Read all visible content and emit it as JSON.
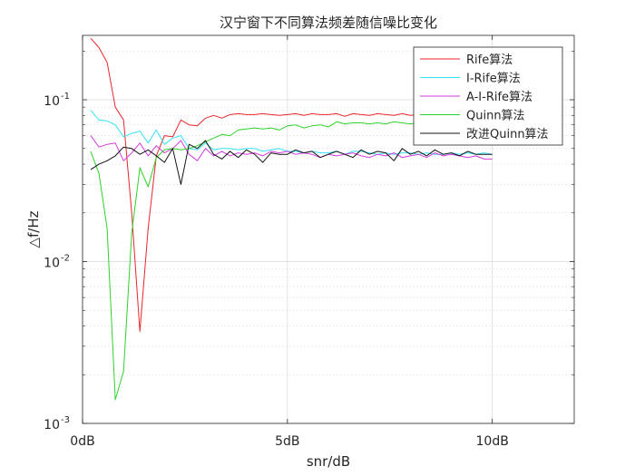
{
  "chart_data": {
    "type": "line",
    "title": "汉宁窗下不同算法频差随信噪比变化",
    "xlabel": "snr/dB",
    "ylabel": "△f/Hz",
    "xscale": "linear",
    "yscale": "log",
    "xlim": [
      0,
      12
    ],
    "ylim": [
      0.001,
      0.25
    ],
    "xticks": [
      0,
      5,
      10
    ],
    "xtick_labels": [
      "0dB",
      "5dB",
      "10dB"
    ],
    "yticks": [
      0.001,
      0.01,
      0.1
    ],
    "ytick_labels": [
      {
        "base": "10",
        "exp": "-3"
      },
      {
        "base": "10",
        "exp": "-2"
      },
      {
        "base": "10",
        "exp": "-1"
      }
    ],
    "grid": true,
    "minor_grid": true,
    "legend_position": "top-right",
    "series": [
      {
        "name": "Rife算法",
        "color": "#e8262b",
        "x": [
          0.2,
          0.4,
          0.6,
          0.8,
          1.0,
          1.2,
          1.4,
          1.6,
          1.8,
          2.0,
          2.2,
          2.4,
          2.6,
          2.8,
          3.0,
          3.2,
          3.4,
          3.6,
          3.8,
          4.0,
          4.2,
          4.4,
          4.6,
          4.8,
          5.0,
          5.2,
          5.4,
          5.6,
          5.8,
          6.0,
          6.2,
          6.4,
          6.6,
          6.8,
          7.0,
          7.2,
          7.4,
          7.6,
          7.8,
          8.0,
          8.2,
          8.4,
          8.6,
          8.8,
          9.0,
          9.2,
          9.4,
          9.6,
          9.8,
          10.0
        ],
        "y": [
          0.24,
          0.21,
          0.17,
          0.09,
          0.075,
          0.02,
          0.0037,
          0.016,
          0.045,
          0.06,
          0.059,
          0.075,
          0.07,
          0.069,
          0.077,
          0.08,
          0.077,
          0.081,
          0.082,
          0.081,
          0.081,
          0.082,
          0.081,
          0.08,
          0.081,
          0.082,
          0.08,
          0.082,
          0.081,
          0.081,
          0.082,
          0.079,
          0.082,
          0.081,
          0.08,
          0.082,
          0.081,
          0.08,
          0.082,
          0.08,
          0.081,
          0.08,
          0.081,
          0.08,
          0.081,
          0.081,
          0.08,
          0.081,
          0.081,
          0.081
        ]
      },
      {
        "name": "I-Rife算法",
        "color": "#35e1f5",
        "x": [
          0.2,
          0.4,
          0.6,
          0.8,
          1.0,
          1.2,
          1.4,
          1.6,
          1.8,
          2.0,
          2.2,
          2.4,
          2.6,
          2.8,
          3.0,
          3.2,
          3.4,
          3.6,
          3.8,
          4.0,
          4.2,
          4.4,
          4.6,
          4.8,
          5.0,
          5.2,
          5.4,
          5.6,
          5.8,
          6.0,
          6.2,
          6.4,
          6.6,
          6.8,
          7.0,
          7.2,
          7.4,
          7.6,
          7.8,
          8.0,
          8.2,
          8.4,
          8.6,
          8.8,
          9.0,
          9.2,
          9.4,
          9.6,
          9.8,
          10.0
        ],
        "y": [
          0.086,
          0.075,
          0.074,
          0.07,
          0.059,
          0.062,
          0.064,
          0.054,
          0.065,
          0.053,
          0.058,
          0.06,
          0.05,
          0.049,
          0.054,
          0.049,
          0.05,
          0.05,
          0.049,
          0.05,
          0.05,
          0.048,
          0.049,
          0.05,
          0.048,
          0.048,
          0.047,
          0.048,
          0.047,
          0.047,
          0.048,
          0.046,
          0.048,
          0.048,
          0.047,
          0.046,
          0.047,
          0.046,
          0.047,
          0.047,
          0.046,
          0.047,
          0.046,
          0.046,
          0.047,
          0.046,
          0.047,
          0.046,
          0.047,
          0.046
        ]
      },
      {
        "name": "A-I-Rife算法",
        "color": "#d43de0",
        "x": [
          0.2,
          0.4,
          0.6,
          0.8,
          1.0,
          1.2,
          1.4,
          1.6,
          1.8,
          2.0,
          2.2,
          2.4,
          2.6,
          2.8,
          3.0,
          3.2,
          3.4,
          3.6,
          3.8,
          4.0,
          4.2,
          4.4,
          4.6,
          4.8,
          5.0,
          5.2,
          5.4,
          5.6,
          5.8,
          6.0,
          6.2,
          6.4,
          6.6,
          6.8,
          7.0,
          7.2,
          7.4,
          7.6,
          7.8,
          8.0,
          8.2,
          8.4,
          8.6,
          8.8,
          9.0,
          9.2,
          9.4,
          9.6,
          9.8,
          10.0
        ],
        "y": [
          0.06,
          0.051,
          0.053,
          0.054,
          0.042,
          0.047,
          0.054,
          0.045,
          0.052,
          0.047,
          0.05,
          0.056,
          0.046,
          0.042,
          0.05,
          0.045,
          0.048,
          0.045,
          0.047,
          0.046,
          0.047,
          0.045,
          0.048,
          0.047,
          0.048,
          0.046,
          0.047,
          0.046,
          0.044,
          0.046,
          0.045,
          0.046,
          0.047,
          0.045,
          0.044,
          0.046,
          0.045,
          0.047,
          0.044,
          0.045,
          0.046,
          0.044,
          0.047,
          0.045,
          0.046,
          0.045,
          0.044,
          0.045,
          0.043,
          0.043
        ]
      },
      {
        "name": "Quinn算法",
        "color": "#2fd12a",
        "x": [
          0.2,
          0.4,
          0.6,
          0.8,
          1.0,
          1.2,
          1.4,
          1.6,
          1.8,
          2.0,
          2.2,
          2.4,
          2.6,
          2.8,
          3.0,
          3.2,
          3.4,
          3.6,
          3.8,
          4.0,
          4.2,
          4.4,
          4.6,
          4.8,
          5.0,
          5.2,
          5.4,
          5.6,
          5.8,
          6.0,
          6.2,
          6.4,
          6.6,
          6.8,
          7.0,
          7.2,
          7.4,
          7.6,
          7.8,
          8.0,
          8.2,
          8.4,
          8.6,
          8.8,
          9.0,
          9.2,
          9.4,
          9.6,
          9.8,
          10.0
        ],
        "y": [
          0.048,
          0.035,
          0.016,
          0.0014,
          0.0021,
          0.015,
          0.038,
          0.029,
          0.044,
          0.049,
          0.05,
          0.049,
          0.05,
          0.052,
          0.055,
          0.058,
          0.061,
          0.06,
          0.065,
          0.066,
          0.067,
          0.066,
          0.067,
          0.065,
          0.069,
          0.07,
          0.067,
          0.069,
          0.07,
          0.068,
          0.073,
          0.071,
          0.072,
          0.072,
          0.071,
          0.072,
          0.071,
          0.073,
          0.072,
          0.071,
          0.072,
          0.071,
          0.073,
          0.072,
          0.071,
          0.072,
          0.071,
          0.072,
          0.073,
          0.072
        ]
      },
      {
        "name": "改进Quinn算法",
        "color": "#141414",
        "x": [
          0.2,
          0.4,
          0.6,
          0.8,
          1.0,
          1.2,
          1.4,
          1.6,
          1.8,
          2.0,
          2.2,
          2.4,
          2.6,
          2.8,
          3.0,
          3.2,
          3.4,
          3.6,
          3.8,
          4.0,
          4.2,
          4.4,
          4.6,
          4.8,
          5.0,
          5.2,
          5.4,
          5.6,
          5.8,
          6.0,
          6.2,
          6.4,
          6.6,
          6.8,
          7.0,
          7.2,
          7.4,
          7.6,
          7.8,
          8.0,
          8.2,
          8.4,
          8.6,
          8.8,
          9.0,
          9.2,
          9.4,
          9.6,
          9.8,
          10.0
        ],
        "y": [
          0.037,
          0.04,
          0.042,
          0.045,
          0.051,
          0.05,
          0.046,
          0.049,
          0.045,
          0.041,
          0.05,
          0.03,
          0.053,
          0.05,
          0.056,
          0.046,
          0.043,
          0.048,
          0.044,
          0.049,
          0.046,
          0.041,
          0.047,
          0.046,
          0.046,
          0.049,
          0.047,
          0.048,
          0.044,
          0.046,
          0.048,
          0.046,
          0.044,
          0.049,
          0.046,
          0.048,
          0.047,
          0.042,
          0.05,
          0.046,
          0.048,
          0.045,
          0.049,
          0.046,
          0.047,
          0.045,
          0.048,
          0.046,
          0.046,
          0.046
        ]
      }
    ]
  }
}
